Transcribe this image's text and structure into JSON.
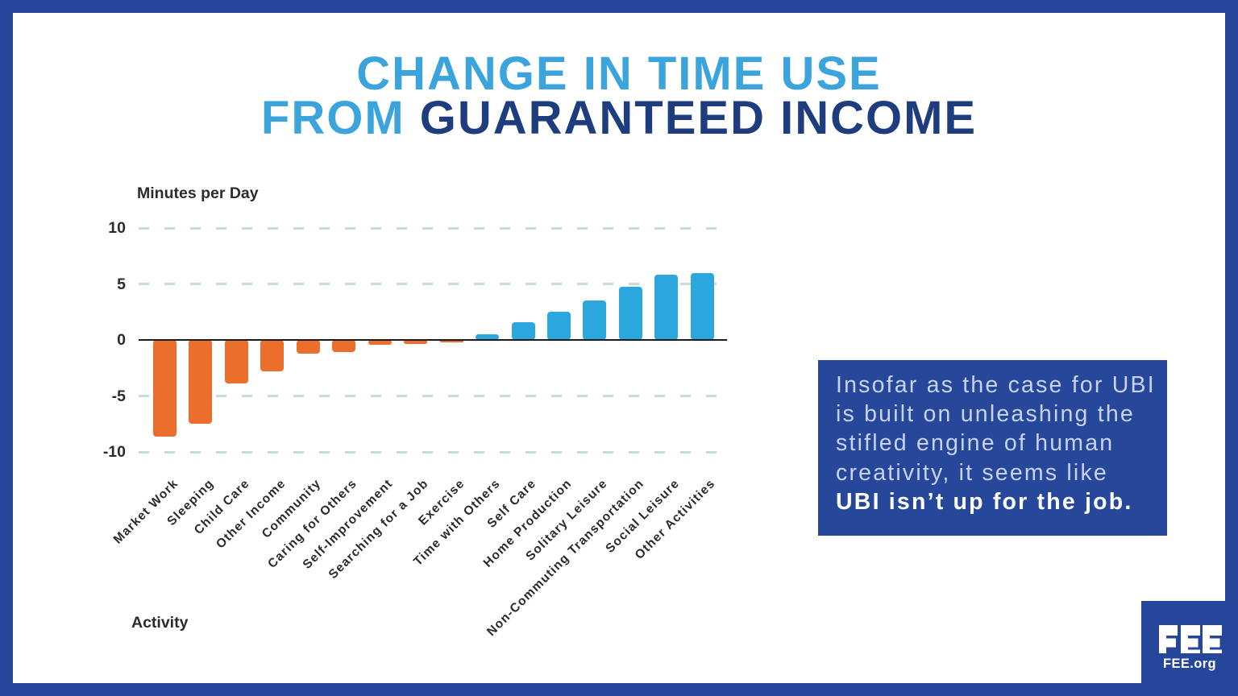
{
  "colors": {
    "frame": "#25469B",
    "title_light_blue": "#3BA4DC",
    "title_dark_blue": "#1E3D7F",
    "bar_positive_blue": "#2BA7DE",
    "bar_negative_orange": "#EB6E2D",
    "gridline": "#C5DCD9",
    "axis_line": "#1B1B1B",
    "axis_text": "#2B2B2B",
    "quote_background": "#27489A",
    "quote_text_light": "#C7D3EC",
    "quote_text_bold": "#FFFFFF",
    "background": "#FFFFFF"
  },
  "title": {
    "line1": "CHANGE IN TIME USE",
    "line2_part1": "FROM ",
    "line2_part2": "GUARANTEED INCOME"
  },
  "chart_data": {
    "type": "bar",
    "title": "Change in Time Use from Guaranteed Income",
    "xlabel": "Activity",
    "ylabel": "Minutes per Day",
    "categories": [
      "Market Work",
      "Sleeping",
      "Child Care",
      "Other Income",
      "Community",
      "Caring for Others",
      "Self-Improvement",
      "Searching for a Job",
      "Exercise",
      "Time with Others",
      "Self Care",
      "Home Production",
      "Solitary Leisure",
      "Non-Commuting Transportation",
      "Social Leisure",
      "Other Activities"
    ],
    "values": [
      -8.6,
      -7.5,
      -3.9,
      -2.8,
      -1.2,
      -1.1,
      -0.45,
      -0.35,
      -0.2,
      0.5,
      1.6,
      2.5,
      3.5,
      4.75,
      5.8,
      6.0
    ],
    "yticks": [
      10,
      5,
      0,
      -5,
      -10
    ],
    "ylim": [
      -12,
      12
    ],
    "grid": "horizontal-dashed",
    "legend": "none",
    "positive_color": "#2BA7DE",
    "negative_color": "#EB6E2D"
  },
  "quote": {
    "lines": [
      "Insofar as the case for UBI",
      "is built on unleashing the",
      "stifled engine of human",
      "creativity, it seems like"
    ],
    "bold_line": "UBI isn’t up for the job."
  },
  "logo": {
    "text": "FEE",
    "subtext": "FEE.org"
  }
}
